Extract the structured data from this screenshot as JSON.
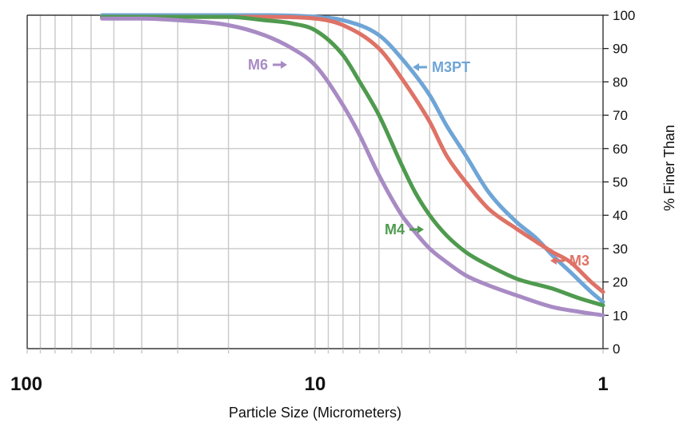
{
  "chart_data": {
    "type": "line",
    "title": "",
    "xlabel": "Particle Size (Micrometers)",
    "ylabel": "% Finer Than",
    "x_scale": "log",
    "x_reversed": true,
    "xlim": [
      100,
      1
    ],
    "ylim": [
      0,
      100
    ],
    "grid": true,
    "y_ticks": [
      "0",
      "10",
      "20",
      "30",
      "40",
      "50",
      "60",
      "70",
      "80",
      "90",
      "100"
    ],
    "x_major_ticks": [
      "100",
      "10",
      "1"
    ],
    "series": [
      {
        "name": "M3PT",
        "color": "#6fa5d6",
        "x": [
          55,
          40,
          30,
          20,
          15,
          10,
          8,
          6,
          5,
          4,
          3.5,
          3,
          2.5,
          2,
          1.7,
          1.5,
          1.3,
          1.1,
          1
        ],
        "y": [
          100,
          100,
          100,
          100,
          100,
          99.5,
          98.5,
          94,
          87,
          76,
          67,
          58,
          47,
          38,
          33,
          28,
          23,
          17,
          14
        ]
      },
      {
        "name": "M3",
        "color": "#de7266",
        "x": [
          55,
          40,
          30,
          20,
          15,
          10,
          8,
          6,
          5,
          4,
          3.5,
          3,
          2.5,
          2,
          1.7,
          1.5,
          1.3,
          1.1,
          1
        ],
        "y": [
          99.5,
          99.5,
          99.5,
          99.5,
          99.5,
          99,
          97,
          90,
          81,
          68,
          58,
          50,
          42,
          36,
          32,
          29,
          26,
          20,
          17
        ]
      },
      {
        "name": "M4",
        "color": "#4f9a4f",
        "x": [
          55,
          40,
          30,
          20,
          15,
          12,
          10,
          8,
          7,
          6,
          5,
          4.5,
          4,
          3.5,
          3,
          2.5,
          2,
          1.5,
          1.2,
          1
        ],
        "y": [
          99.5,
          99.5,
          99.5,
          99.5,
          98.5,
          97.5,
          95.5,
          88,
          80,
          70,
          55,
          47,
          40,
          34,
          29,
          25,
          21,
          18,
          15,
          13
        ]
      },
      {
        "name": "M6",
        "color": "#a88bc4",
        "x": [
          55,
          40,
          30,
          20,
          15,
          12,
          10,
          8,
          7,
          6,
          5,
          4.5,
          4,
          3.5,
          3,
          2.5,
          2,
          1.5,
          1.2,
          1
        ],
        "y": [
          99,
          99,
          98.5,
          97,
          94,
          90,
          85,
          73,
          64,
          52,
          40,
          35,
          30,
          26,
          22,
          19,
          16,
          12.5,
          11,
          10
        ]
      }
    ],
    "annotations": [
      {
        "text": "M3PT",
        "arrow": "left",
        "series": "M3PT"
      },
      {
        "text": "M3",
        "arrow": "left",
        "series": "M3"
      },
      {
        "text": "M4",
        "arrow": "right",
        "series": "M4"
      },
      {
        "text": "M6",
        "arrow": "right",
        "series": "M6"
      }
    ]
  }
}
